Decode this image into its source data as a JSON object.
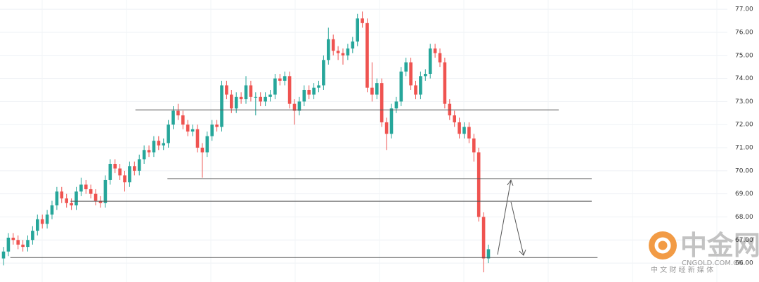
{
  "chart_data": {
    "type": "candlestick",
    "ylim": [
      65.18,
      77.4
    ],
    "yticks": [
      {
        "value": 66,
        "label": "66.00"
      },
      {
        "value": 67,
        "label": "67.00"
      },
      {
        "value": 68,
        "label": "68.00"
      },
      {
        "value": 69,
        "label": "69.00"
      },
      {
        "value": 70,
        "label": "70.00"
      },
      {
        "value": 71,
        "label": "71.00"
      },
      {
        "value": 72,
        "label": "72.00"
      },
      {
        "value": 73,
        "label": "73.00"
      },
      {
        "value": 74,
        "label": "74.00"
      },
      {
        "value": 75,
        "label": "75.00"
      },
      {
        "value": 76,
        "label": "76.00"
      },
      {
        "value": 77,
        "label": "77.00"
      }
    ],
    "grid": true,
    "up_color": "#26a69a",
    "down_color": "#ef5350",
    "open": [
      66.2,
      66.5,
      67.1,
      67.0,
      66.8,
      66.7,
      67.0,
      67.4,
      67.9,
      67.7,
      68.1,
      68.5,
      69.1,
      68.8,
      68.6,
      68.5,
      69.1,
      69.4,
      69.2,
      69.0,
      68.7,
      68.6,
      69.6,
      70.3,
      70.1,
      69.8,
      69.5,
      70.2,
      70.0,
      70.5,
      70.9,
      70.8,
      71.3,
      71.1,
      71.2,
      72.0,
      72.6,
      72.4,
      72.0,
      71.7,
      71.8,
      71.0,
      70.8,
      71.5,
      72.0,
      71.9,
      73.7,
      73.3,
      72.7,
      73.2,
      73.1,
      73.7,
      73.2,
      73.2,
      73.0,
      73.2,
      73.3,
      74.0,
      73.9,
      74.1,
      72.9,
      72.6,
      73.0,
      73.5,
      73.3,
      73.6,
      73.7,
      74.8,
      75.7,
      75.2,
      75.1,
      75.0,
      75.3,
      75.6,
      76.6,
      76.4,
      73.6,
      73.3,
      73.8,
      72.1,
      71.6,
      72.7,
      73.0,
      74.3,
      74.7,
      73.7,
      73.3,
      74.1,
      74.2,
      75.3,
      75.1,
      74.7,
      72.9,
      72.4,
      72.1,
      71.6,
      71.9,
      71.4,
      70.8,
      68.0,
      66.2
    ],
    "high": [
      66.7,
      67.3,
      67.3,
      67.2,
      67.0,
      67.2,
      67.6,
      68.1,
      68.1,
      68.3,
      68.7,
      69.3,
      69.3,
      69.0,
      68.8,
      69.3,
      69.7,
      69.6,
      69.4,
      69.2,
      68.9,
      69.8,
      70.5,
      70.5,
      70.3,
      70.0,
      70.4,
      70.4,
      70.7,
      71.1,
      71.1,
      71.5,
      71.5,
      71.4,
      72.2,
      72.8,
      72.9,
      72.6,
      72.2,
      72.0,
      72.0,
      71.2,
      71.7,
      72.2,
      72.2,
      73.9,
      73.9,
      73.5,
      73.4,
      73.4,
      74.1,
      73.9,
      73.4,
      73.4,
      73.4,
      73.5,
      74.2,
      74.2,
      74.3,
      74.3,
      73.1,
      73.2,
      73.7,
      73.7,
      73.8,
      73.9,
      75.0,
      76.2,
      75.9,
      75.4,
      75.3,
      75.5,
      75.8,
      76.8,
      76.9,
      76.6,
      74.7,
      74.0,
      74.0,
      72.3,
      72.9,
      73.2,
      74.5,
      74.9,
      74.9,
      73.9,
      74.3,
      74.4,
      75.5,
      75.5,
      75.3,
      74.9,
      73.1,
      72.6,
      72.3,
      72.1,
      72.1,
      71.6,
      71.0,
      68.2,
      66.8
    ],
    "low": [
      65.9,
      66.3,
      66.8,
      66.6,
      66.5,
      66.5,
      66.8,
      67.2,
      67.5,
      67.5,
      67.9,
      68.3,
      68.6,
      68.4,
      68.3,
      68.3,
      68.9,
      69.0,
      68.8,
      68.5,
      68.4,
      68.4,
      69.4,
      69.9,
      69.6,
      69.1,
      69.3,
      69.8,
      69.8,
      70.3,
      70.6,
      70.6,
      70.9,
      70.9,
      71.0,
      71.8,
      72.2,
      71.8,
      71.5,
      71.5,
      70.8,
      69.7,
      70.6,
      71.3,
      71.7,
      71.7,
      73.1,
      72.5,
      72.5,
      72.9,
      72.9,
      73.0,
      72.4,
      72.8,
      72.8,
      73.0,
      73.1,
      73.7,
      73.7,
      72.7,
      72.0,
      72.4,
      72.8,
      73.1,
      73.1,
      73.4,
      73.5,
      74.6,
      75.0,
      74.8,
      74.6,
      74.8,
      75.1,
      75.4,
      76.2,
      73.4,
      73.0,
      73.1,
      71.9,
      70.9,
      71.4,
      72.5,
      72.8,
      74.1,
      73.5,
      73.1,
      73.1,
      73.9,
      74.0,
      74.9,
      74.5,
      72.7,
      72.2,
      71.9,
      71.4,
      71.4,
      71.2,
      70.4,
      67.8,
      65.6,
      66.0
    ],
    "close": [
      66.5,
      67.1,
      67.0,
      66.8,
      66.7,
      67.0,
      67.4,
      67.9,
      67.7,
      68.1,
      68.5,
      69.1,
      68.8,
      68.6,
      68.5,
      69.1,
      69.4,
      69.2,
      69.0,
      68.7,
      68.6,
      69.6,
      70.3,
      70.1,
      69.8,
      69.5,
      70.2,
      70.0,
      70.5,
      70.9,
      70.8,
      71.3,
      71.1,
      71.2,
      72.0,
      72.6,
      72.4,
      72.0,
      71.7,
      71.8,
      71.0,
      70.8,
      71.5,
      72.0,
      71.9,
      73.7,
      73.3,
      72.7,
      73.2,
      73.1,
      73.7,
      73.2,
      73.2,
      73.0,
      73.2,
      73.3,
      74.0,
      73.9,
      74.1,
      72.9,
      72.6,
      73.0,
      73.5,
      73.3,
      73.6,
      73.7,
      74.8,
      75.7,
      75.2,
      75.1,
      75.0,
      75.3,
      75.6,
      76.6,
      76.4,
      73.6,
      73.3,
      73.8,
      72.1,
      71.6,
      72.7,
      73.0,
      74.3,
      74.7,
      73.7,
      73.3,
      74.1,
      74.2,
      75.3,
      75.1,
      74.7,
      72.9,
      72.4,
      72.1,
      71.6,
      71.9,
      71.4,
      70.8,
      68.0,
      66.2,
      66.6
    ],
    "levels": [
      {
        "value": 72.64,
        "from": 27.2,
        "to": 114.5
      },
      {
        "value": 69.66,
        "from": 33.8,
        "to": 121.3
      },
      {
        "value": 68.68,
        "from": 13.8,
        "to": 121.3
      },
      {
        "value": 66.24,
        "from": 1.4,
        "to": 122.5
      }
    ],
    "watermark": {
      "name": "中金网",
      "site": "CNGOLD.COM.CN",
      "slogan": "中 文 财 经 新 媒 体"
    }
  }
}
